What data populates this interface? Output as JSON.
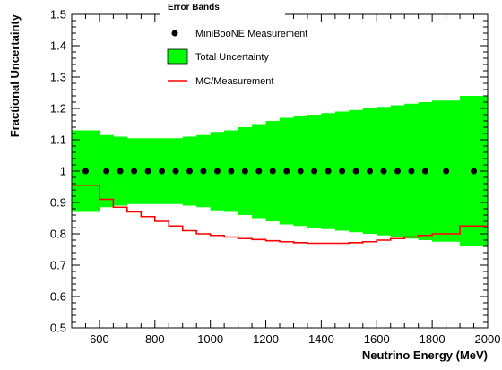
{
  "chart_data": {
    "type": "line",
    "title": "",
    "xlabel": "Neutrino Energy (MeV)",
    "ylabel": "Fractional Uncertainty",
    "xlim": [
      500,
      2000
    ],
    "ylim": [
      0.5,
      1.5
    ],
    "x_ticks": [
      600,
      800,
      1000,
      1200,
      1400,
      1600,
      1800,
      2000
    ],
    "y_ticks": [
      0.5,
      0.6,
      0.7,
      0.8,
      0.9,
      1.0,
      1.1,
      1.2,
      1.3,
      1.4,
      1.5
    ],
    "x_tick_labels": [
      "600",
      "800",
      "1000",
      "1200",
      "1400",
      "1600",
      "1800",
      "2000"
    ],
    "y_tick_labels": [
      "0.5",
      "0.6",
      "0.7",
      "0.8",
      "0.9",
      "1",
      "1.1",
      "1.2",
      "1.3",
      "1.4",
      "1.5"
    ],
    "legend": {
      "title": "Error Bands",
      "placement": "top-center",
      "entries": [
        "MiniBooNE Measurement",
        "Total Uncertainty",
        "MC/Measurement"
      ]
    },
    "bin_edges": [
      500,
      600,
      650,
      700,
      750,
      800,
      850,
      900,
      950,
      1000,
      1050,
      1100,
      1150,
      1200,
      1250,
      1300,
      1350,
      1400,
      1450,
      1500,
      1550,
      1600,
      1650,
      1700,
      1750,
      1800,
      1900,
      2000
    ],
    "series": [
      {
        "name": "MiniBooNE Measurement",
        "style": "markers",
        "color": "#000000",
        "values": [
          1,
          1,
          1,
          1,
          1,
          1,
          1,
          1,
          1,
          1,
          1,
          1,
          1,
          1,
          1,
          1,
          1,
          1,
          1,
          1,
          1,
          1,
          1,
          1,
          1,
          1,
          1
        ]
      },
      {
        "name": "Total Uncertainty",
        "style": "band",
        "color": "#00ff00",
        "lower": [
          0.87,
          0.885,
          0.89,
          0.895,
          0.895,
          0.895,
          0.895,
          0.89,
          0.885,
          0.875,
          0.87,
          0.86,
          0.85,
          0.84,
          0.83,
          0.825,
          0.82,
          0.815,
          0.81,
          0.805,
          0.8,
          0.795,
          0.79,
          0.785,
          0.78,
          0.775,
          0.76
        ],
        "upper": [
          1.13,
          1.115,
          1.11,
          1.105,
          1.105,
          1.105,
          1.105,
          1.11,
          1.115,
          1.125,
          1.13,
          1.14,
          1.15,
          1.16,
          1.17,
          1.175,
          1.18,
          1.185,
          1.19,
          1.195,
          1.2,
          1.205,
          1.21,
          1.215,
          1.22,
          1.225,
          1.24
        ]
      },
      {
        "name": "MC/Measurement",
        "style": "step",
        "color": "#ff0000",
        "values": [
          0.955,
          0.91,
          0.885,
          0.87,
          0.855,
          0.84,
          0.825,
          0.81,
          0.8,
          0.795,
          0.79,
          0.785,
          0.782,
          0.778,
          0.775,
          0.772,
          0.77,
          0.77,
          0.77,
          0.772,
          0.775,
          0.78,
          0.785,
          0.79,
          0.795,
          0.8,
          0.825
        ]
      }
    ]
  }
}
